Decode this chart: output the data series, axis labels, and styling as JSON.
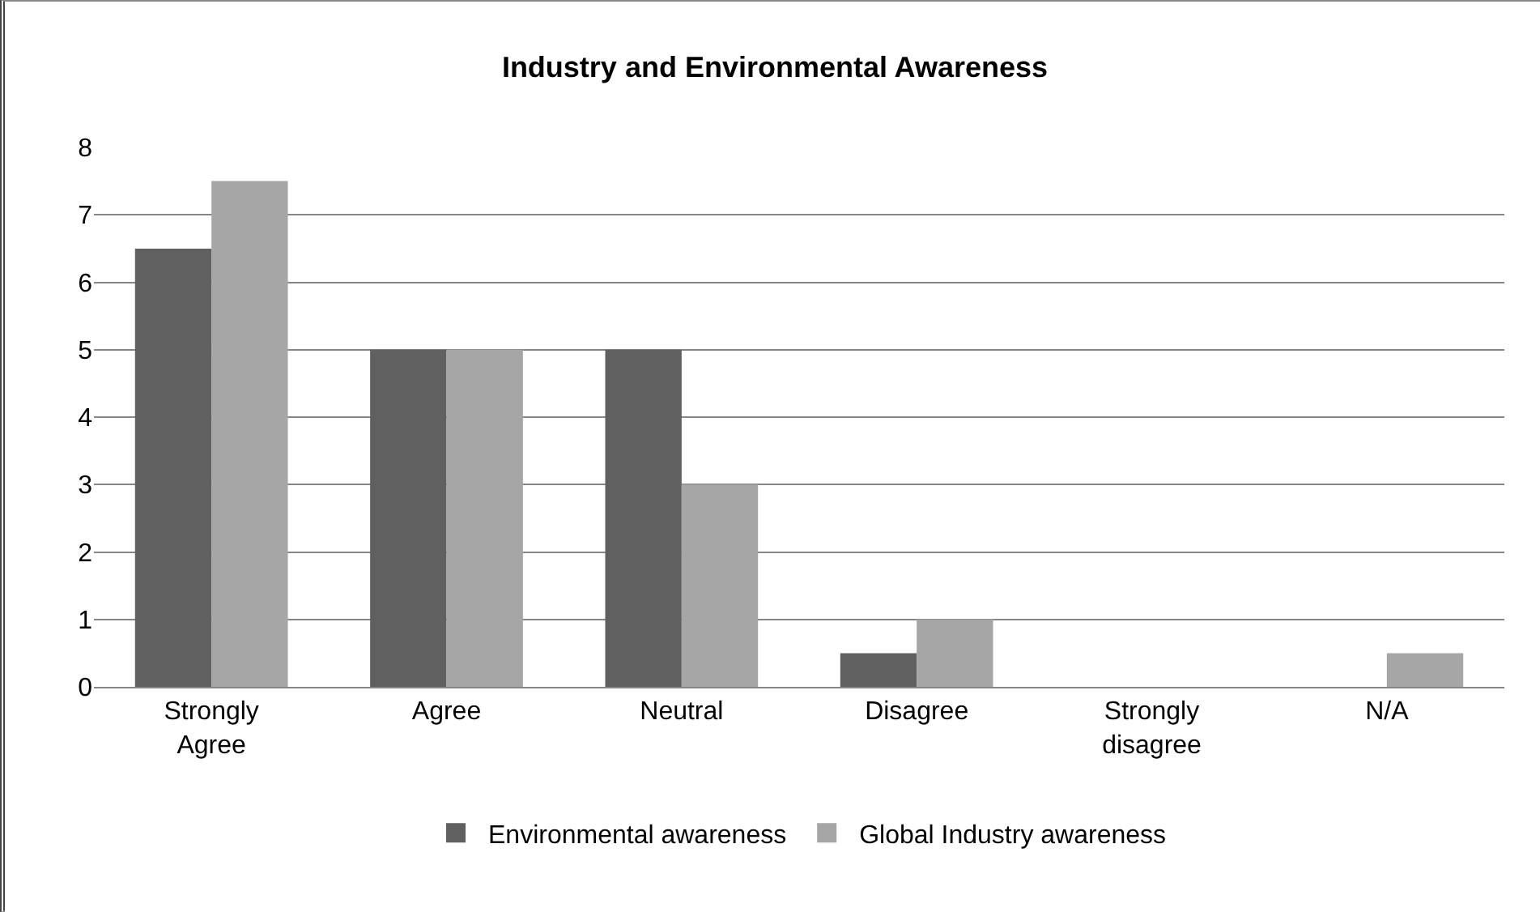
{
  "chart_data": {
    "type": "bar",
    "title": "Industry and Environmental Awareness",
    "categories": [
      "Strongly Agree",
      "Agree",
      "Neutral",
      "Disagree",
      "Strongly disagree",
      "N/A"
    ],
    "series": [
      {
        "name": "Environmental awareness",
        "color": "#606060",
        "values": [
          6.5,
          5,
          5,
          0.5,
          0,
          0
        ]
      },
      {
        "name": "Global Industry awareness",
        "color": "#a6a6a6",
        "values": [
          7.5,
          5,
          3,
          1,
          0,
          0.5
        ]
      }
    ],
    "ylim": [
      0,
      8
    ],
    "yticks": [
      0,
      1,
      2,
      3,
      4,
      5,
      6,
      7,
      8
    ],
    "grid": "y",
    "legend": "bottom"
  }
}
